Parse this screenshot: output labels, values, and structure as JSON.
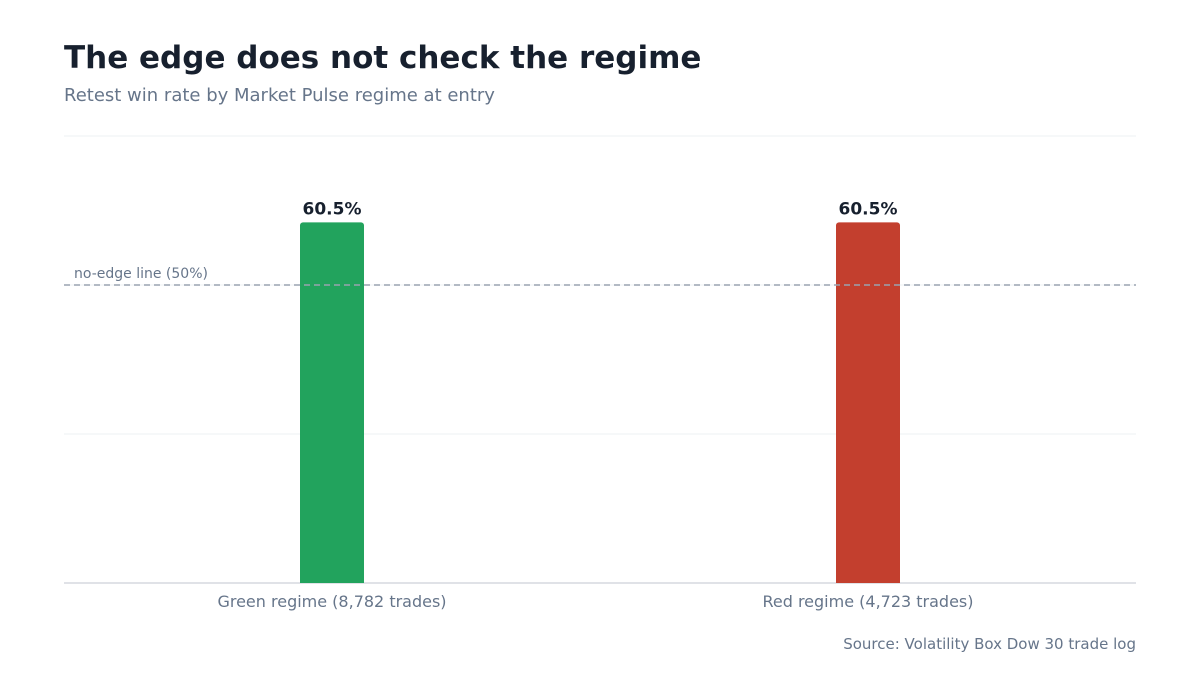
{
  "chart_data": {
    "type": "bar",
    "title": "The edge does not check the regime",
    "subtitle": "Retest win rate by Market Pulse regime at entry",
    "categories": [
      "Green regime (8,782 trades)",
      "Red regime (4,723 trades)"
    ],
    "values": [
      60.5,
      60.5
    ],
    "value_labels": [
      "60.5%",
      "60.5%"
    ],
    "bar_colors": [
      "#22a35d",
      "#c33f2e"
    ],
    "ylim": [
      0,
      75
    ],
    "gridlines": [
      25,
      50,
      75
    ],
    "grid": true,
    "reference_line": {
      "value": 50,
      "label": "no-edge line (50%)",
      "color": "#9aa3b0"
    },
    "source": "Source: Volatility Box Dow 30 trade log"
  },
  "colors": {
    "text_dark": "#17202e",
    "text_muted": "#66758a",
    "grid": "#eef0f3",
    "axis": "#d5d9df"
  }
}
